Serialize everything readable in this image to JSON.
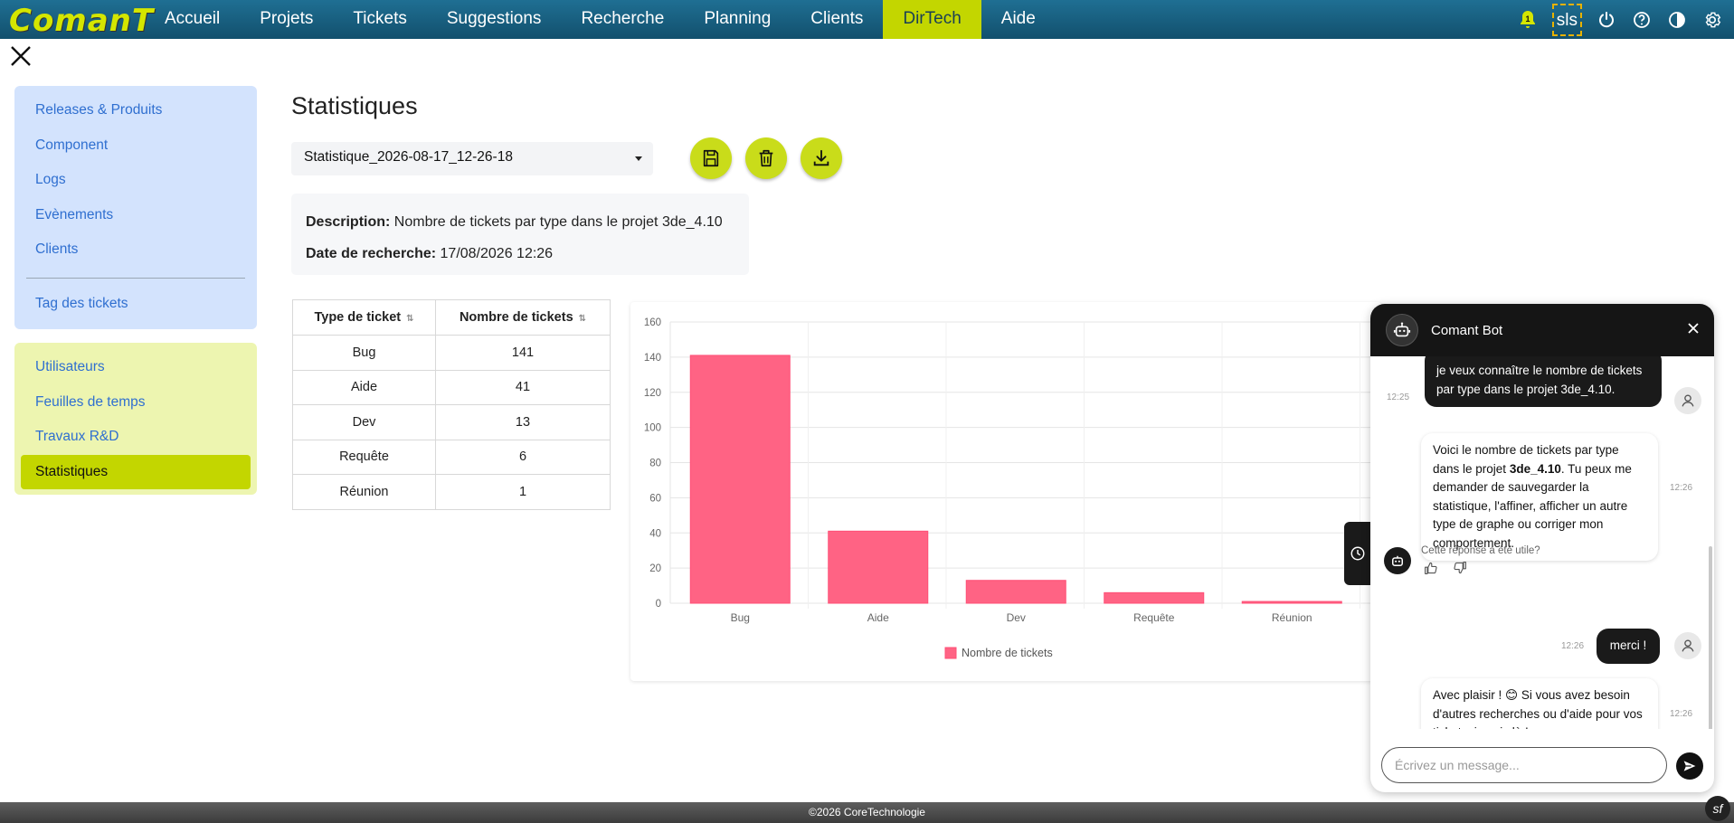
{
  "brand": {
    "logo_text": "ComanT"
  },
  "nav": {
    "items": [
      {
        "label": "Accueil",
        "active": false
      },
      {
        "label": "Projets",
        "active": false
      },
      {
        "label": "Tickets",
        "active": false
      },
      {
        "label": "Suggestions",
        "active": false
      },
      {
        "label": "Recherche",
        "active": false
      },
      {
        "label": "Planning",
        "active": false
      },
      {
        "label": "Clients",
        "active": false
      },
      {
        "label": "DirTech",
        "active": true
      },
      {
        "label": "Aide",
        "active": false
      }
    ],
    "notification_count": "1",
    "user_initials": "sls"
  },
  "sidebar": {
    "group1": [
      "Releases & Produits",
      "Component",
      "Logs",
      "Evènements",
      "Clients"
    ],
    "group1_extra": "Tag des tickets",
    "group2": [
      "Utilisateurs",
      "Feuilles de temps",
      "Travaux R&D",
      "Statistiques"
    ],
    "active": "Statistiques"
  },
  "main": {
    "title": "Statistiques",
    "selected_statistic": "Statistique_2026-08-17_12-26-18",
    "description_label": "Description:",
    "description_value": "Nombre de tickets par type dans le projet 3de_4.10",
    "date_label": "Date de recherche:",
    "date_value": "17/08/2026 12:26"
  },
  "table": {
    "headers": [
      "Type de ticket",
      "Nombre de tickets"
    ],
    "rows": [
      [
        "Bug",
        "141"
      ],
      [
        "Aide",
        "41"
      ],
      [
        "Dev",
        "13"
      ],
      [
        "Requête",
        "6"
      ],
      [
        "Réunion",
        "1"
      ]
    ]
  },
  "chart_data": {
    "type": "bar",
    "categories": [
      "Bug",
      "Aide",
      "Dev",
      "Requête",
      "Réunion"
    ],
    "series": [
      {
        "name": "Nombre de tickets",
        "values": [
          141,
          41,
          13,
          6,
          1
        ],
        "color": "#ff6384"
      }
    ],
    "y_ticks": [
      0,
      20,
      40,
      60,
      80,
      100,
      120,
      140,
      160
    ],
    "ylim": [
      0,
      160
    ],
    "grid": true,
    "legend_position": "bottom"
  },
  "chat": {
    "title": "Comant Bot",
    "messages": [
      {
        "from": "user",
        "time": "12:25",
        "text": "je veux connaître le nombre de tickets par type dans le projet 3de_4.10."
      },
      {
        "from": "bot",
        "time": "12:26",
        "text_before": "Voici le nombre de tickets par type dans le projet ",
        "text_bold": "3de_4.10",
        "text_after": ". Tu peux me demander de sauvegarder la statistique, l'affiner, afficher un autre type de graphe ou corriger mon comportement."
      },
      {
        "from": "user",
        "time": "12:26",
        "text": "merci !"
      },
      {
        "from": "bot",
        "time": "12:26",
        "text": "Avec plaisir ! 😊 Si vous avez besoin d'autres recherches ou d'aide pour vos tickets, je suis là !"
      }
    ],
    "feedback_question": "Cette réponse a été utile?",
    "input_placeholder": "Écrivez un message..."
  },
  "footer": {
    "text": "©2026 CoreTechnologie"
  }
}
